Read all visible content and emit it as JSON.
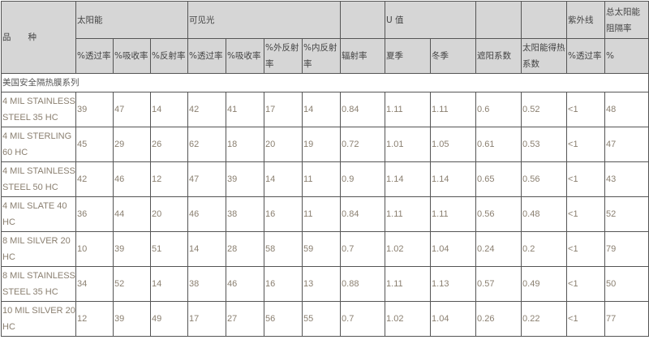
{
  "header": {
    "variety": "品　　种",
    "groups": {
      "solar": "太阳能",
      "visible": "可见光",
      "u_value": "U 值",
      "uv": "紫外线",
      "total_solar_rejection": "总太阳能阻隔率"
    },
    "sub": [
      "%透过率",
      "%吸收率",
      "%反射率",
      "%透过率",
      "%吸收率",
      "%外反射率",
      "%内反射率",
      "辐射率",
      "夏季",
      "冬季",
      "遮阳系数",
      "太阳能得热系数",
      "%透过率",
      "%"
    ]
  },
  "section_title": "美国安全隔热膜系列",
  "rows": [
    {
      "name": "4 MIL STAINLESS STEEL 35 HC",
      "v": [
        "39",
        "47",
        "14",
        "42",
        "41",
        "17",
        "14",
        "0.84",
        "1.11",
        "1.11",
        "0.6",
        "0.52",
        "<1",
        "48"
      ]
    },
    {
      "name": "4 MIL STERLING 60 HC",
      "v": [
        "45",
        "29",
        "26",
        "62",
        "18",
        "20",
        "19",
        "0.72",
        "1.01",
        "1.05",
        "0.61",
        "0.53",
        "<1",
        "47"
      ]
    },
    {
      "name": "4 MIL STAINLESS STEEL 50 HC",
      "v": [
        "42",
        "46",
        "12",
        "47",
        "39",
        "14",
        "11",
        "0.9",
        "1.14",
        "1.14",
        "0.65",
        "0.56",
        "<1",
        "43"
      ]
    },
    {
      "name": "4 MIL SLATE 40 HC",
      "v": [
        "36",
        "44",
        "20",
        "46",
        "38",
        "16",
        "11",
        "0.84",
        "1.11",
        "1.11",
        "0.56",
        "0.48",
        "<1",
        "52"
      ]
    },
    {
      "name": "8 MIL SILVER 20 HC",
      "v": [
        "10",
        "39",
        "51",
        "14",
        "28",
        "58",
        "59",
        "0.7",
        "1.02",
        "1.04",
        "0.24",
        "0.2",
        "<1",
        "79"
      ]
    },
    {
      "name": "8 MIL STAINLESS STEEL 35 HC",
      "v": [
        "34",
        "52",
        "14",
        "38",
        "46",
        "16",
        "13",
        "0.88",
        "1.11",
        "1.13",
        "0.57",
        "0.49",
        "<1",
        "50"
      ]
    },
    {
      "name": "10 MIL SILVER 20 HC",
      "v": [
        "12",
        "39",
        "49",
        "17",
        "27",
        "56",
        "55",
        "0.7",
        "1.02",
        "1.04",
        "0.26",
        "0.22",
        "<1",
        "77"
      ]
    }
  ]
}
